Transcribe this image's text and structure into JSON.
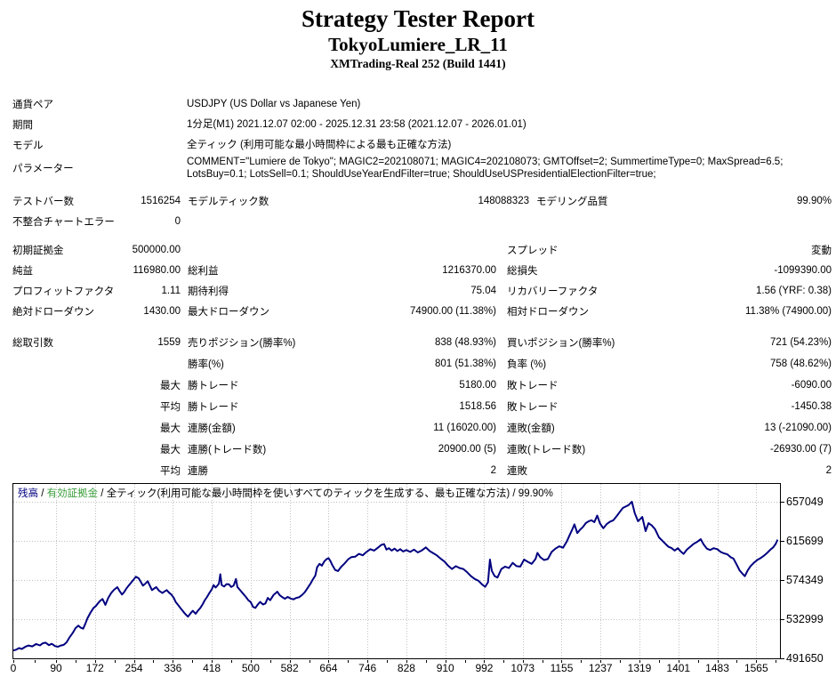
{
  "header": {
    "title": "Strategy Tester Report",
    "expert": "TokyoLumiere_LR_11",
    "account": "XMTrading-Real 252 (Build 1441)"
  },
  "params_table": {
    "rows": [
      {
        "label": "通貨ペア",
        "value": "USDJPY (US Dollar vs Japanese Yen)"
      },
      {
        "label": "期間",
        "value": "1分足(M1) 2021.12.07 02:00 - 2025.12.31 23:58 (2021.12.07 - 2026.01.01)"
      },
      {
        "label": "モデル",
        "value": "全ティック (利用可能な最小時間枠による最も正確な方法)"
      },
      {
        "label": "パラメーター",
        "value": "COMMENT=\"Lumiere de Tokyo\"; MAGIC2=202108071; MAGIC4=202108073; GMTOffset=2; SummertimeType=0; MaxSpread=6.5; LotsBuy=0.1; LotsSell=0.1; ShouldUseYearEndFilter=true; ShouldUseUSPresidentialElectionFilter=true;"
      }
    ]
  },
  "tables": {
    "bars_table": {
      "rows": [
        [
          "テストバー数",
          "1516254",
          "モデルティック数",
          "148088323",
          "モデリング品質",
          "99.90%"
        ],
        [
          "不整合チャートエラー",
          "0",
          "",
          "",
          "",
          ""
        ]
      ]
    },
    "finance_table": {
      "rows": [
        [
          "初期証拠金",
          "500000.00",
          "",
          "",
          "スプレッド",
          "変動"
        ],
        [
          "純益",
          "116980.00",
          "総利益",
          "1216370.00",
          "総損失",
          "-1099390.00"
        ],
        [
          "プロフィットファクタ",
          "1.11",
          "期待利得",
          "75.04",
          "リカバリーファクタ",
          "1.56 (YRF: 0.38)"
        ],
        [
          "絶対ドローダウン",
          "1430.00",
          "最大ドローダウン",
          "74900.00 (11.38%)",
          "相対ドローダウン",
          "11.38% (74900.00)"
        ]
      ]
    },
    "trades_table": {
      "rows": [
        [
          "総取引数",
          "1559",
          "売りポジション(勝率%)",
          "838 (48.93%)",
          "買いポジション(勝率%)",
          "721 (54.23%)"
        ],
        [
          "",
          "",
          "勝率(%)",
          "801 (51.38%)",
          "負率 (%)",
          "758 (48.62%)"
        ],
        [
          "",
          "最大",
          "勝トレード",
          "5180.00",
          "敗トレード",
          "-6090.00"
        ],
        [
          "",
          "平均",
          "勝トレード",
          "1518.56",
          "敗トレード",
          "-1450.38"
        ],
        [
          "",
          "最大",
          "連勝(金額)",
          "11 (16020.00)",
          "連敗(金額)",
          "13 (-21090.00)"
        ],
        [
          "",
          "最大",
          "連勝(トレード数)",
          "20900.00 (5)",
          "連敗(トレード数)",
          "-26930.00 (7)"
        ],
        [
          "",
          "平均",
          "連勝",
          "2",
          "連敗",
          "2"
        ]
      ]
    }
  },
  "chart_data": {
    "type": "line",
    "legend": {
      "balance_label": "残高",
      "equity_label": "有効証拠金",
      "separator": " / ",
      "model_label": "全ティック(利用可能な最小時間枠を使いすべてのティックを生成する、最も正確な方法)",
      "quality": "99.90%"
    },
    "colors": {
      "balance": "#000080",
      "equity": "#3a9d3a",
      "grid": "#c0c0c0",
      "axis": "#000000"
    },
    "xlabel": "",
    "ylabel": "",
    "x_ticks": [
      0,
      90,
      172,
      254,
      336,
      418,
      500,
      582,
      664,
      746,
      828,
      910,
      992,
      1073,
      1155,
      1237,
      1319,
      1401,
      1483,
      1565
    ],
    "y_ticks": [
      657049,
      615699,
      574349,
      532999,
      491650
    ],
    "x_range": [
      0,
      1615
    ],
    "y_range": [
      491650,
      675845
    ],
    "grid": true,
    "legend_position": "top-left",
    "series": [
      {
        "name": "残高",
        "color": "#000080",
        "points": [
          [
            0,
            500000
          ],
          [
            6,
            500800
          ],
          [
            12,
            502500
          ],
          [
            18,
            501500
          ],
          [
            25,
            503800
          ],
          [
            32,
            505200
          ],
          [
            40,
            504200
          ],
          [
            48,
            506800
          ],
          [
            56,
            505300
          ],
          [
            62,
            507500
          ],
          [
            68,
            508200
          ],
          [
            75,
            505600
          ],
          [
            81,
            507000
          ],
          [
            88,
            504500
          ],
          [
            94,
            503900
          ],
          [
            100,
            505200
          ],
          [
            106,
            505800
          ],
          [
            112,
            508500
          ],
          [
            118,
            513500
          ],
          [
            125,
            518300
          ],
          [
            131,
            523500
          ],
          [
            137,
            526100
          ],
          [
            142,
            524000
          ],
          [
            147,
            522900
          ],
          [
            152,
            528500
          ],
          [
            156,
            533900
          ],
          [
            162,
            539500
          ],
          [
            169,
            544900
          ],
          [
            174,
            547000
          ],
          [
            178,
            549600
          ],
          [
            183,
            552500
          ],
          [
            188,
            554300
          ],
          [
            194,
            548000
          ],
          [
            200,
            555500
          ],
          [
            206,
            560600
          ],
          [
            212,
            564000
          ],
          [
            219,
            566800
          ],
          [
            224,
            562500
          ],
          [
            229,
            559000
          ],
          [
            234,
            562000
          ],
          [
            238,
            565200
          ],
          [
            243,
            568500
          ],
          [
            248,
            571500
          ],
          [
            253,
            574500
          ],
          [
            258,
            577800
          ],
          [
            264,
            576200
          ],
          [
            269,
            572000
          ],
          [
            273,
            568400
          ],
          [
            278,
            570500
          ],
          [
            283,
            573100
          ],
          [
            288,
            568000
          ],
          [
            292,
            563700
          ],
          [
            297,
            565500
          ],
          [
            301,
            566800
          ],
          [
            307,
            563000
          ],
          [
            314,
            560600
          ],
          [
            318,
            562000
          ],
          [
            323,
            563700
          ],
          [
            328,
            561000
          ],
          [
            333,
            559000
          ],
          [
            338,
            555500
          ],
          [
            342,
            551200
          ],
          [
            348,
            547500
          ],
          [
            354,
            543500
          ],
          [
            360,
            539800
          ],
          [
            365,
            537000
          ],
          [
            368,
            535600
          ],
          [
            373,
            539000
          ],
          [
            378,
            541800
          ],
          [
            384,
            538700
          ],
          [
            389,
            542000
          ],
          [
            394,
            544900
          ],
          [
            399,
            549000
          ],
          [
            403,
            552700
          ],
          [
            408,
            556500
          ],
          [
            413,
            560600
          ],
          [
            418,
            564500
          ],
          [
            422,
            569000
          ],
          [
            426,
            566500
          ],
          [
            430,
            568500
          ],
          [
            433,
            570500
          ],
          [
            436,
            580500
          ],
          [
            439,
            569000
          ],
          [
            444,
            567500
          ],
          [
            449,
            570000
          ],
          [
            454,
            569900
          ],
          [
            459,
            567000
          ],
          [
            464,
            568500
          ],
          [
            469,
            575500
          ],
          [
            472,
            567000
          ],
          [
            478,
            563500
          ],
          [
            484,
            560000
          ],
          [
            490,
            556500
          ],
          [
            495,
            553000
          ],
          [
            500,
            551000
          ],
          [
            505,
            546000
          ],
          [
            510,
            544900
          ],
          [
            515,
            548500
          ],
          [
            520,
            551200
          ],
          [
            526,
            548500
          ],
          [
            531,
            549600
          ],
          [
            536,
            555500
          ],
          [
            541,
            553000
          ],
          [
            548,
            558500
          ],
          [
            556,
            562000
          ],
          [
            561,
            558500
          ],
          [
            566,
            556500
          ],
          [
            572,
            554500
          ],
          [
            578,
            556500
          ],
          [
            584,
            554800
          ],
          [
            590,
            554000
          ],
          [
            596,
            555500
          ],
          [
            602,
            556200
          ],
          [
            608,
            558500
          ],
          [
            614,
            561500
          ],
          [
            620,
            566000
          ],
          [
            626,
            570500
          ],
          [
            631,
            575000
          ],
          [
            636,
            579000
          ],
          [
            640,
            588000
          ],
          [
            645,
            591500
          ],
          [
            650,
            589500
          ],
          [
            655,
            594000
          ],
          [
            660,
            596500
          ],
          [
            664,
            597500
          ],
          [
            668,
            594500
          ],
          [
            672,
            590000
          ],
          [
            678,
            585000
          ],
          [
            684,
            583800
          ],
          [
            690,
            588000
          ],
          [
            698,
            592000
          ],
          [
            706,
            596500
          ],
          [
            712,
            598500
          ],
          [
            720,
            599000
          ],
          [
            728,
            602000
          ],
          [
            736,
            600500
          ],
          [
            744,
            604000
          ],
          [
            752,
            607000
          ],
          [
            760,
            605500
          ],
          [
            768,
            608500
          ],
          [
            775,
            611500
          ],
          [
            781,
            612300
          ],
          [
            786,
            606500
          ],
          [
            791,
            608000
          ],
          [
            797,
            605500
          ],
          [
            803,
            607500
          ],
          [
            809,
            605000
          ],
          [
            815,
            607000
          ],
          [
            821,
            604500
          ],
          [
            828,
            606000
          ],
          [
            836,
            604000
          ],
          [
            844,
            606500
          ],
          [
            852,
            603500
          ],
          [
            860,
            605500
          ],
          [
            869,
            608800
          ],
          [
            877,
            605000
          ],
          [
            885,
            602500
          ],
          [
            892,
            600500
          ],
          [
            900,
            597000
          ],
          [
            908,
            594000
          ],
          [
            916,
            589500
          ],
          [
            924,
            586000
          ],
          [
            932,
            589000
          ],
          [
            940,
            587000
          ],
          [
            948,
            586000
          ],
          [
            956,
            582500
          ],
          [
            964,
            578500
          ],
          [
            972,
            575500
          ],
          [
            980,
            573500
          ],
          [
            988,
            569500
          ],
          [
            994,
            567200
          ],
          [
            1000,
            572000
          ],
          [
            1004,
            596000
          ],
          [
            1008,
            584000
          ],
          [
            1014,
            578500
          ],
          [
            1020,
            577000
          ],
          [
            1028,
            586000
          ],
          [
            1036,
            588500
          ],
          [
            1044,
            587000
          ],
          [
            1052,
            592500
          ],
          [
            1060,
            589000
          ],
          [
            1068,
            588500
          ],
          [
            1076,
            596000
          ],
          [
            1084,
            593500
          ],
          [
            1092,
            591500
          ],
          [
            1100,
            596500
          ],
          [
            1104,
            603000
          ],
          [
            1110,
            598500
          ],
          [
            1118,
            595500
          ],
          [
            1126,
            596500
          ],
          [
            1134,
            604000
          ],
          [
            1142,
            607500
          ],
          [
            1150,
            610000
          ],
          [
            1158,
            608500
          ],
          [
            1166,
            615000
          ],
          [
            1172,
            622000
          ],
          [
            1178,
            628500
          ],
          [
            1182,
            633200
          ],
          [
            1188,
            624000
          ],
          [
            1194,
            627500
          ],
          [
            1200,
            630500
          ],
          [
            1206,
            634500
          ],
          [
            1212,
            636500
          ],
          [
            1218,
            637500
          ],
          [
            1224,
            635500
          ],
          [
            1230,
            642500
          ],
          [
            1236,
            634000
          ],
          [
            1243,
            629000
          ],
          [
            1250,
            633500
          ],
          [
            1257,
            636000
          ],
          [
            1264,
            637500
          ],
          [
            1272,
            642500
          ],
          [
            1278,
            646500
          ],
          [
            1284,
            650500
          ],
          [
            1290,
            652000
          ],
          [
            1296,
            653500
          ],
          [
            1303,
            657049
          ],
          [
            1309,
            645000
          ],
          [
            1316,
            636500
          ],
          [
            1325,
            641000
          ],
          [
            1332,
            626000
          ],
          [
            1338,
            634500
          ],
          [
            1345,
            632000
          ],
          [
            1352,
            628000
          ],
          [
            1360,
            619500
          ],
          [
            1367,
            616000
          ],
          [
            1373,
            613000
          ],
          [
            1380,
            609500
          ],
          [
            1387,
            608000
          ],
          [
            1393,
            605500
          ],
          [
            1400,
            608000
          ],
          [
            1406,
            604500
          ],
          [
            1412,
            602000
          ],
          [
            1419,
            606500
          ],
          [
            1426,
            609500
          ],
          [
            1433,
            612500
          ],
          [
            1440,
            614500
          ],
          [
            1448,
            617500
          ],
          [
            1454,
            612000
          ],
          [
            1461,
            607500
          ],
          [
            1468,
            606000
          ],
          [
            1475,
            608000
          ],
          [
            1483,
            607000
          ],
          [
            1490,
            604000
          ],
          [
            1497,
            602500
          ],
          [
            1504,
            601500
          ],
          [
            1511,
            598500
          ],
          [
            1517,
            597000
          ],
          [
            1524,
            590500
          ],
          [
            1530,
            584500
          ],
          [
            1537,
            580500
          ],
          [
            1541,
            578400
          ],
          [
            1547,
            584500
          ],
          [
            1553,
            589000
          ],
          [
            1560,
            592500
          ],
          [
            1567,
            595500
          ],
          [
            1574,
            597500
          ],
          [
            1581,
            600000
          ],
          [
            1588,
            603000
          ],
          [
            1595,
            606500
          ],
          [
            1601,
            609000
          ],
          [
            1606,
            612500
          ],
          [
            1610,
            616980
          ]
        ]
      }
    ]
  }
}
